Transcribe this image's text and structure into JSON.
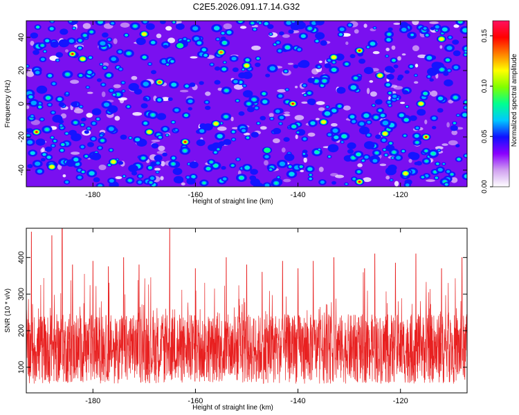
{
  "chart_data": [
    {
      "type": "heatmap",
      "title": "C2E5.2026.091.17.14.G32",
      "xlabel": "Height of straight line (km)",
      "ylabel": "Frequency (Hz)",
      "xlim": [
        -193,
        -107
      ],
      "ylim": [
        -50,
        50
      ],
      "x_ticks": [
        -180,
        -160,
        -140,
        -120
      ],
      "y_ticks": [
        -40,
        -20,
        0,
        20,
        40
      ],
      "colorbar": {
        "label": "Normalized spectral amplitude",
        "range": [
          0,
          0.165
        ],
        "ticks": [
          "0.00",
          "0.05",
          "0.10",
          "0.15"
        ],
        "colors": [
          "#ffffff",
          "#d0a0f0",
          "#8a00ff",
          "#1010ff",
          "#00c8ff",
          "#00ff90",
          "#80ff00",
          "#ffff00",
          "#ff8000",
          "#ff0000",
          "#ff1060"
        ]
      },
      "hotspots": [
        {
          "x": -191,
          "y": -17,
          "v": 0.15
        },
        {
          "x": -184,
          "y": 30,
          "v": 0.14
        },
        {
          "x": -182,
          "y": 27,
          "v": 0.12
        },
        {
          "x": -170,
          "y": 42,
          "v": 0.12
        },
        {
          "x": -167,
          "y": 13,
          "v": 0.13
        },
        {
          "x": -169,
          "y": -17,
          "v": 0.12
        },
        {
          "x": -176,
          "y": -35,
          "v": 0.1
        },
        {
          "x": -162,
          "y": -23,
          "v": 0.15
        },
        {
          "x": -163,
          "y": 35,
          "v": 0.09
        },
        {
          "x": -155,
          "y": 31,
          "v": 0.13
        },
        {
          "x": -150,
          "y": 23,
          "v": 0.1
        },
        {
          "x": -141,
          "y": 0,
          "v": 0.14
        },
        {
          "x": -135,
          "y": -11,
          "v": 0.12
        },
        {
          "x": -133,
          "y": 28,
          "v": 0.12
        },
        {
          "x": -128,
          "y": 32,
          "v": 0.16
        },
        {
          "x": -128,
          "y": -47,
          "v": 0.14
        },
        {
          "x": -123,
          "y": -18,
          "v": 0.12
        },
        {
          "x": -124,
          "y": 17,
          "v": 0.11
        },
        {
          "x": -115,
          "y": -20,
          "v": 0.15
        },
        {
          "x": -119,
          "y": -42,
          "v": 0.11
        },
        {
          "x": -112,
          "y": 39,
          "v": 0.12
        },
        {
          "x": -188,
          "y": -38,
          "v": 0.1
        },
        {
          "x": -146,
          "y": -28,
          "v": 0.09
        },
        {
          "x": -156,
          "y": -12,
          "v": 0.1
        },
        {
          "x": -116,
          "y": 0,
          "v": 0.1
        }
      ]
    },
    {
      "type": "line",
      "xlabel": "Height of straight line (km)",
      "ylabel": "SNR (10 * v/v)",
      "xlim": [
        -193,
        -107
      ],
      "ylim": [
        30,
        480
      ],
      "x_ticks": [
        -180,
        -160,
        -140,
        -120
      ],
      "y_ticks": [
        100,
        200,
        300,
        400
      ],
      "series": [
        {
          "name": "SNR",
          "color": "#e82020",
          "baseline": 150,
          "peaks": [
            {
              "x": -192,
              "y": 470
            },
            {
              "x": -188,
              "y": 460
            },
            {
              "x": -186,
              "y": 480
            },
            {
              "x": -184,
              "y": 380
            },
            {
              "x": -180,
              "y": 390
            },
            {
              "x": -177,
              "y": 375
            },
            {
              "x": -174,
              "y": 400
            },
            {
              "x": -171,
              "y": 380
            },
            {
              "x": -165,
              "y": 480
            },
            {
              "x": -160,
              "y": 370
            },
            {
              "x": -154,
              "y": 400
            },
            {
              "x": -150,
              "y": 380
            },
            {
              "x": -147,
              "y": 360
            },
            {
              "x": -143,
              "y": 390
            },
            {
              "x": -140,
              "y": 370
            },
            {
              "x": -137,
              "y": 390
            },
            {
              "x": -133,
              "y": 400
            },
            {
              "x": -127,
              "y": 370
            },
            {
              "x": -125,
              "y": 410
            },
            {
              "x": -121,
              "y": 385
            },
            {
              "x": -117,
              "y": 410
            },
            {
              "x": -112,
              "y": 370
            },
            {
              "x": -108,
              "y": 400
            }
          ]
        }
      ]
    }
  ]
}
